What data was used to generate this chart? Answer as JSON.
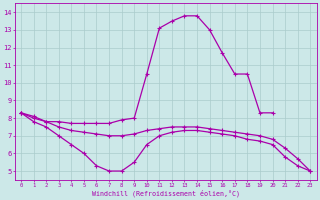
{
  "xlabel": "Windchill (Refroidissement éolien,°C)",
  "xlim": [
    -0.5,
    23.5
  ],
  "ylim": [
    4.5,
    14.5
  ],
  "yticks": [
    5,
    6,
    7,
    8,
    9,
    10,
    11,
    12,
    13,
    14
  ],
  "xticks": [
    0,
    1,
    2,
    3,
    4,
    5,
    6,
    7,
    8,
    9,
    10,
    11,
    12,
    13,
    14,
    15,
    16,
    17,
    18,
    19,
    20,
    21,
    22,
    23
  ],
  "bg_color": "#cce8e8",
  "line_color": "#aa00aa",
  "grid_color": "#aacccc",
  "line1_x": [
    0,
    1,
    2,
    3,
    4,
    5,
    6,
    7,
    8,
    9,
    10,
    11,
    12,
    13,
    14,
    15,
    16,
    17,
    18,
    19,
    20
  ],
  "line1_y": [
    8.3,
    8.1,
    7.8,
    7.8,
    7.7,
    7.7,
    7.7,
    7.7,
    7.9,
    8.0,
    10.5,
    13.1,
    13.5,
    13.8,
    13.8,
    13.0,
    11.7,
    10.5,
    10.5,
    8.3,
    8.3
  ],
  "line2_x": [
    0,
    1,
    2,
    3,
    4,
    5,
    6,
    7,
    8,
    9,
    10,
    11,
    12,
    13,
    14,
    15,
    16,
    17,
    18,
    19,
    20,
    21,
    22,
    23
  ],
  "line2_y": [
    8.3,
    8.0,
    7.8,
    7.5,
    7.3,
    7.2,
    7.1,
    7.0,
    7.0,
    7.1,
    7.3,
    7.4,
    7.5,
    7.5,
    7.5,
    7.4,
    7.3,
    7.2,
    7.1,
    7.0,
    6.8,
    6.3,
    5.7,
    5.0
  ],
  "line3_x": [
    0,
    1,
    2,
    3,
    4,
    5,
    6,
    7,
    8,
    9,
    10,
    11,
    12,
    13,
    14,
    15,
    16,
    17,
    18,
    19,
    20,
    21,
    22,
    23
  ],
  "line3_y": [
    8.3,
    7.8,
    7.5,
    7.0,
    6.5,
    6.0,
    5.3,
    5.0,
    5.0,
    5.5,
    6.5,
    7.0,
    7.2,
    7.3,
    7.3,
    7.2,
    7.1,
    7.0,
    6.8,
    6.7,
    6.5,
    5.8,
    5.3,
    5.0
  ]
}
